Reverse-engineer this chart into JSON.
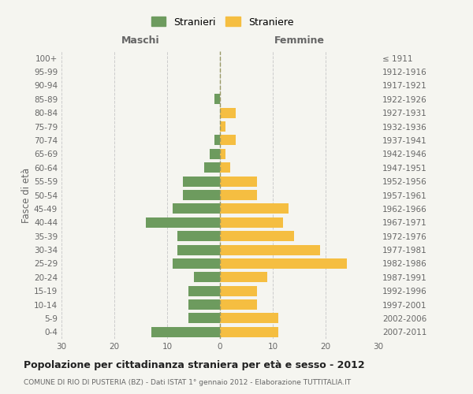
{
  "age_groups": [
    "0-4",
    "5-9",
    "10-14",
    "15-19",
    "20-24",
    "25-29",
    "30-34",
    "35-39",
    "40-44",
    "45-49",
    "50-54",
    "55-59",
    "60-64",
    "65-69",
    "70-74",
    "75-79",
    "80-84",
    "85-89",
    "90-94",
    "95-99",
    "100+"
  ],
  "birth_years": [
    "2007-2011",
    "2002-2006",
    "1997-2001",
    "1992-1996",
    "1987-1991",
    "1982-1986",
    "1977-1981",
    "1972-1976",
    "1967-1971",
    "1962-1966",
    "1957-1961",
    "1952-1956",
    "1947-1951",
    "1942-1946",
    "1937-1941",
    "1932-1936",
    "1927-1931",
    "1922-1926",
    "1917-1921",
    "1912-1916",
    "≤ 1911"
  ],
  "maschi": [
    13,
    6,
    6,
    6,
    5,
    9,
    8,
    8,
    14,
    9,
    7,
    7,
    3,
    2,
    1,
    0,
    0,
    1,
    0,
    0,
    0
  ],
  "femmine": [
    11,
    11,
    7,
    7,
    9,
    24,
    19,
    14,
    12,
    13,
    7,
    7,
    2,
    1,
    3,
    1,
    3,
    0,
    0,
    0,
    0
  ],
  "maschi_color": "#6d9b5e",
  "femmine_color": "#f5be41",
  "center_line_color": "#999966",
  "grid_color": "#cccccc",
  "xlim": 30,
  "title": "Popolazione per cittadinanza straniera per età e sesso - 2012",
  "subtitle": "COMUNE DI RIO DI PUSTERIA (BZ) - Dati ISTAT 1° gennaio 2012 - Elaborazione TUTTITALIA.IT",
  "ylabel_left": "Fasce di età",
  "xlabel_maschi": "Maschi",
  "xlabel_femmine": "Femmine",
  "legend_stranieri": "Stranieri",
  "legend_straniere": "Straniere",
  "background_color": "#f5f5f0",
  "text_color": "#666666"
}
